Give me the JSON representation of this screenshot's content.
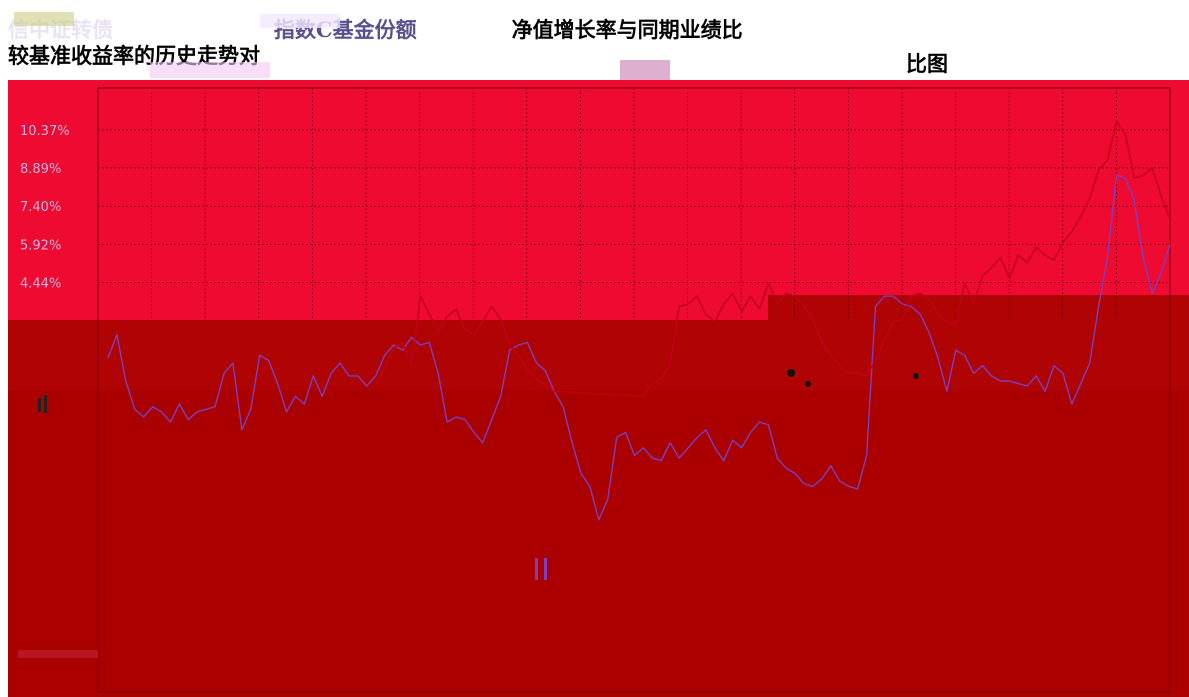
{
  "title": {
    "line1_a": "信中证转债",
    "line1_b": "指数C基金份额",
    "line1_c": "净值增长率与同期业绩比",
    "line2": "较基准收益率的历史走势对",
    "line3": "比图"
  },
  "colors": {
    "background": "#ee0a30",
    "lower_band": "#aa0000",
    "band_mid": "#b00404",
    "grid": "#000000",
    "fund_line": "#7b3fbf",
    "benchmark_line": "#c00018"
  },
  "chart_data": {
    "type": "line",
    "y_ticks": [
      "10.37%",
      "8.89%",
      "7.40%",
      "5.92%",
      "4.44%"
    ],
    "y_tick_values": [
      10.37,
      8.89,
      7.4,
      5.92,
      4.44
    ],
    "series": [
      {
        "color": "#7b3fbf",
        "x": [
          0,
          1,
          2,
          3,
          4,
          5,
          6,
          7,
          8,
          9,
          10,
          11,
          12,
          13,
          14,
          15,
          16,
          17,
          18,
          19,
          20,
          21,
          22,
          23,
          24,
          25,
          26,
          27,
          28,
          29,
          30,
          31,
          32,
          33,
          34,
          35,
          36,
          37,
          38,
          39,
          40,
          41,
          42,
          43,
          44,
          45,
          46,
          47,
          48,
          49,
          50,
          51,
          52,
          53,
          54,
          55,
          56,
          57,
          58,
          59,
          60,
          61,
          62,
          63,
          64,
          65,
          66,
          67,
          68,
          69,
          70,
          71,
          72,
          73,
          74,
          75,
          76,
          77,
          78,
          79,
          80,
          81,
          82,
          83,
          84,
          85,
          86,
          87,
          88,
          89,
          90,
          91,
          92,
          93,
          94,
          95,
          96,
          97,
          98,
          99,
          100,
          101,
          102,
          103,
          104,
          105,
          106,
          107,
          108,
          109,
          110,
          111,
          112,
          113,
          114,
          115,
          116,
          117,
          118,
          119
        ],
        "values": [
          1.5,
          2.4,
          0.6,
          -0.5,
          -0.8,
          -0.4,
          -0.6,
          -1.0,
          -0.3,
          -0.9,
          -0.6,
          -0.5,
          -0.4,
          0.9,
          1.3,
          -1.3,
          -0.5,
          1.6,
          1.4,
          0.5,
          -0.6,
          0.0,
          -0.3,
          0.8,
          0.0,
          0.9,
          1.3,
          0.8,
          0.8,
          0.4,
          0.8,
          1.6,
          2.0,
          1.8,
          2.3,
          2.0,
          2.1,
          0.9,
          -1.0,
          -0.8,
          -0.9,
          -1.4,
          -1.8,
          -0.9,
          0.0,
          1.8,
          2.0,
          2.1,
          1.3,
          1.0,
          0.2,
          -0.4,
          -1.8,
          -3.0,
          -3.5,
          -4.8,
          -4.0,
          -1.6,
          -1.4,
          -2.3,
          -2.0,
          -2.4,
          -2.5,
          -1.8,
          -2.4,
          -2.0,
          -1.6,
          -1.3,
          -2.0,
          -2.5,
          -1.7,
          -2.0,
          -1.4,
          -1.0,
          -1.1,
          -2.4,
          -2.8,
          -3.0,
          -3.4,
          -3.5,
          -3.2,
          -2.7,
          -3.3,
          -3.5,
          -3.6,
          -2.3,
          3.5,
          3.9,
          3.9,
          3.6,
          3.5,
          3.2,
          2.5,
          1.5,
          0.2,
          1.8,
          1.6,
          0.9,
          1.2,
          0.8,
          0.6,
          0.6,
          0.5,
          0.4,
          0.8,
          0.2,
          1.2,
          0.9,
          -0.3,
          0.5,
          1.3,
          3.5,
          5.4,
          8.6,
          8.5,
          7.6,
          5.4,
          4.0,
          4.8,
          5.9
        ]
      },
      {
        "color": "#c00018",
        "x": [
          30,
          31,
          32,
          33,
          34,
          35,
          36,
          37,
          38,
          39,
          40,
          41,
          42,
          43,
          44,
          45,
          46,
          47,
          48,
          49,
          50,
          60,
          61,
          62,
          63,
          64,
          65,
          66,
          67,
          68,
          69,
          70,
          71,
          72,
          73,
          74,
          75,
          76,
          77,
          78,
          79,
          80,
          81,
          82,
          83,
          84,
          85,
          86,
          87,
          88,
          89,
          90,
          91,
          92,
          93,
          94,
          95,
          96,
          97,
          98,
          99,
          100,
          101,
          102,
          103,
          104,
          105,
          106,
          107,
          108,
          109,
          110,
          111,
          112,
          113,
          114,
          115,
          116,
          117,
          118,
          119
        ],
        "values": [
          0.5,
          1.1,
          1.9,
          2.1,
          1.2,
          3.9,
          3.2,
          2.5,
          3.1,
          3.4,
          2.6,
          2.4,
          2.9,
          3.5,
          3.0,
          2.0,
          1.6,
          1.0,
          0.7,
          0.4,
          0.2,
          0.0,
          0.5,
          0.7,
          1.3,
          3.5,
          3.6,
          3.9,
          3.2,
          2.9,
          3.6,
          4.0,
          3.3,
          3.9,
          3.4,
          4.4,
          3.6,
          4.0,
          3.9,
          3.5,
          3.0,
          2.1,
          1.6,
          1.2,
          0.9,
          0.9,
          0.8,
          1.4,
          2.2,
          2.9,
          3.0,
          3.9,
          4.0,
          3.8,
          3.2,
          2.9,
          2.8,
          4.4,
          3.6,
          4.7,
          5.0,
          5.4,
          4.6,
          5.5,
          5.2,
          5.8,
          5.5,
          5.3,
          6.0,
          6.4,
          7.0,
          7.7,
          8.8,
          9.2,
          10.7,
          10.2,
          8.5,
          8.6,
          8.9,
          7.8,
          6.9
        ]
      }
    ],
    "ylim": [
      -11.5,
      12.0
    ],
    "grid": true
  }
}
